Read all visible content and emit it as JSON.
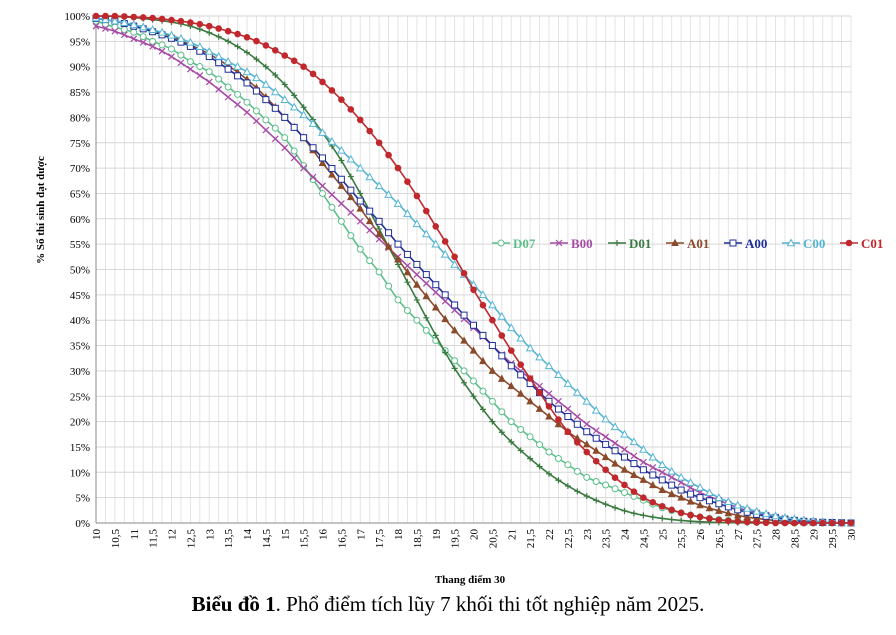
{
  "caption": {
    "label": "Biểu đồ 1",
    "text": ". Phổ điểm tích lũy 7 khối thi tốt nghiệp năm 2025."
  },
  "chart_data": {
    "type": "line",
    "xlabel": "Thang điểm 30",
    "ylabel": "% Số thí sinh đạt được",
    "xlim": [
      10,
      30
    ],
    "ylim": [
      0,
      100
    ],
    "x_step": 0.25,
    "x_tick_labels": [
      "10",
      "10,5",
      "11",
      "11,5",
      "12",
      "12,5",
      "13",
      "13,5",
      "14",
      "14,5",
      "15",
      "15,5",
      "16",
      "16,5",
      "17",
      "17,5",
      "18",
      "18,5",
      "19",
      "19,5",
      "20",
      "20,5",
      "21",
      "21,5",
      "22",
      "22,5",
      "23",
      "23,5",
      "24",
      "24,5",
      "25",
      "25,5",
      "26",
      "26,5",
      "27",
      "27,5",
      "28",
      "28,5",
      "29",
      "29,5",
      "30"
    ],
    "y_tick_labels": [
      "0%",
      "5%",
      "10%",
      "15%",
      "20%",
      "25%",
      "30%",
      "35%",
      "40%",
      "45%",
      "50%",
      "55%",
      "60%",
      "65%",
      "70%",
      "75%",
      "80%",
      "85%",
      "90%",
      "95%",
      "100%"
    ],
    "grid": true,
    "legend_position": "right-middle",
    "series": [
      {
        "name": "D07",
        "color": "#5bbf8a",
        "marker": "circle-open",
        "x": [
          10,
          10.5,
          11,
          11.5,
          12,
          12.5,
          13,
          13.5,
          14,
          14.5,
          15,
          15.5,
          16,
          16.5,
          17,
          17.5,
          18,
          18.5,
          19,
          19.5,
          20,
          20.5,
          21,
          21.5,
          22,
          22.5,
          23,
          23.5,
          24,
          24.5,
          25,
          25.5,
          26,
          26.5,
          27,
          27.5,
          28,
          28.5,
          29,
          29.5,
          30
        ],
        "y": [
          99,
          97.8,
          96.8,
          95,
          93.5,
          91,
          89,
          86,
          83,
          79.5,
          76,
          70.5,
          65,
          59.5,
          54,
          49.5,
          44,
          40,
          36,
          32,
          28,
          24,
          20,
          17,
          14,
          11.5,
          9,
          7.5,
          6,
          4.5,
          3,
          2,
          1.2,
          0.7,
          0.4,
          0.2,
          0.1,
          0,
          0,
          0,
          0
        ]
      },
      {
        "name": "B00",
        "color": "#a64ca6",
        "marker": "x",
        "x": [
          10,
          10.5,
          11,
          11.5,
          12,
          12.5,
          13,
          13.5,
          14,
          14.5,
          15,
          15.5,
          16,
          16.5,
          17,
          17.5,
          18,
          18.5,
          19,
          19.5,
          20,
          20.5,
          21,
          21.5,
          22,
          22.5,
          23,
          23.5,
          24,
          24.5,
          25,
          25.5,
          26,
          26.5,
          27,
          27.5,
          28,
          28.5,
          29,
          29.5,
          30
        ],
        "y": [
          98,
          97,
          95.5,
          94,
          92,
          89.5,
          87,
          84,
          81,
          77.5,
          74,
          70,
          66.5,
          63,
          59.5,
          56,
          52.5,
          49,
          45.5,
          42,
          38.5,
          35,
          31.5,
          28.5,
          25.5,
          22.5,
          19.5,
          17,
          14.5,
          12,
          10,
          8,
          6,
          4.5,
          3,
          2,
          1.2,
          0.6,
          0.3,
          0.1,
          0
        ]
      },
      {
        "name": "D01",
        "color": "#3a7a40",
        "marker": "plus",
        "x": [
          10,
          10.5,
          11,
          11.5,
          12,
          12.5,
          13,
          13.5,
          14,
          14.5,
          15,
          15.5,
          16,
          16.5,
          17,
          17.5,
          18,
          18.5,
          19,
          19.5,
          20,
          20.5,
          21,
          21.5,
          22,
          22.5,
          23,
          23.5,
          24,
          24.5,
          25,
          25.5,
          26,
          26.5,
          27,
          27.5,
          28,
          28.5,
          29,
          29.5,
          30
        ],
        "y": [
          100,
          99.9,
          99.7,
          99.3,
          98.8,
          98,
          96.7,
          95,
          92.8,
          90,
          86.5,
          82,
          77,
          71.5,
          65,
          58,
          51,
          44,
          37,
          30.5,
          25,
          20,
          16,
          12.7,
          9.7,
          7.3,
          5.3,
          3.7,
          2.4,
          1.5,
          0.9,
          0.5,
          0.25,
          0.1,
          0.05,
          0,
          0,
          0,
          0,
          0,
          0
        ]
      },
      {
        "name": "A01",
        "color": "#8b4a2b",
        "marker": "triangle-filled",
        "x": [
          10,
          10.5,
          11,
          11.5,
          12,
          12.5,
          13,
          13.5,
          14,
          14.5,
          15,
          15.5,
          16,
          16.5,
          17,
          17.5,
          18,
          18.5,
          19,
          19.5,
          20,
          20.5,
          21,
          21.5,
          22,
          22.5,
          23,
          23.5,
          24,
          24.5,
          25,
          25.5,
          26,
          26.5,
          27,
          27.5,
          28,
          28.5,
          29,
          29.5,
          30
        ],
        "y": [
          99.5,
          99,
          98.2,
          97.2,
          96,
          94.3,
          92.5,
          90.2,
          87.5,
          84,
          80,
          76,
          71,
          66.5,
          62,
          57,
          52,
          47,
          42.5,
          38,
          34,
          30,
          27,
          24,
          21,
          18,
          15.5,
          13,
          10.5,
          8.5,
          6.5,
          5,
          3.5,
          2.4,
          1.5,
          0.9,
          0.5,
          0.2,
          0.1,
          0,
          0
        ]
      },
      {
        "name": "A00",
        "color": "#1f2f99",
        "marker": "square-open",
        "x": [
          10,
          10.5,
          11,
          11.5,
          12,
          12.5,
          13,
          13.5,
          14,
          14.5,
          15,
          15.5,
          16,
          16.5,
          17,
          17.5,
          18,
          18.5,
          19,
          19.5,
          20,
          20.5,
          21,
          21.5,
          22,
          22.5,
          23,
          23.5,
          24,
          24.5,
          25,
          25.5,
          26,
          26.5,
          27,
          27.5,
          28,
          28.5,
          29,
          29.5,
          30
        ],
        "y": [
          99.5,
          99,
          98,
          96.9,
          95.6,
          94,
          92,
          89.5,
          86.8,
          83.5,
          80,
          76,
          72,
          67.8,
          63.5,
          59.5,
          55,
          51,
          47,
          43,
          39,
          35,
          31,
          27.5,
          24,
          21,
          18,
          15.5,
          13,
          10.5,
          8.5,
          6.5,
          5,
          3.8,
          2.6,
          1.7,
          1,
          0.5,
          0.2,
          0.1,
          0
        ]
      },
      {
        "name": "C00",
        "color": "#56b4d3",
        "marker": "triangle-open",
        "x": [
          10,
          10.5,
          11,
          11.5,
          12,
          12.5,
          13,
          13.5,
          14,
          14.5,
          15,
          15.5,
          16,
          16.5,
          17,
          17.5,
          18,
          18.5,
          19,
          19.5,
          20,
          20.5,
          21,
          21.5,
          22,
          22.5,
          23,
          23.5,
          24,
          24.5,
          25,
          25.5,
          26,
          26.5,
          27,
          27.5,
          28,
          28.5,
          29,
          29.5,
          30
        ],
        "y": [
          99.6,
          99,
          98.3,
          97.3,
          96.2,
          94.8,
          93,
          91,
          89,
          86.5,
          83.5,
          80.5,
          77,
          73.5,
          70,
          66.5,
          63,
          59,
          55,
          51,
          47,
          43,
          38.5,
          34.5,
          31,
          27.5,
          24,
          20.5,
          17.5,
          14.5,
          11.5,
          9,
          7,
          5,
          3.5,
          2.3,
          1.4,
          0.8,
          0.4,
          0.1,
          0
        ]
      },
      {
        "name": "C01",
        "color": "#c0282d",
        "marker": "circle-filled",
        "x": [
          10,
          10.5,
          11,
          11.5,
          12,
          12.5,
          13,
          13.5,
          14,
          14.5,
          15,
          15.5,
          16,
          16.5,
          17,
          17.5,
          18,
          18.5,
          19,
          19.5,
          20,
          20.5,
          21,
          21.5,
          22,
          22.5,
          23,
          23.5,
          24,
          24.5,
          25,
          25.5,
          26,
          26.5,
          27,
          27.5,
          28,
          28.5,
          29,
          29.5,
          30
        ],
        "y": [
          100,
          100,
          99.8,
          99.6,
          99.2,
          98.7,
          98,
          97,
          95.8,
          94.2,
          92.2,
          90,
          87,
          83.5,
          79.5,
          75,
          70,
          64.5,
          58.5,
          52.5,
          46,
          40,
          34,
          28.5,
          23,
          18,
          14,
          10.5,
          7.5,
          5,
          3.3,
          2,
          1.2,
          0.6,
          0.3,
          0.1,
          0,
          0,
          0,
          0,
          0
        ]
      }
    ]
  }
}
